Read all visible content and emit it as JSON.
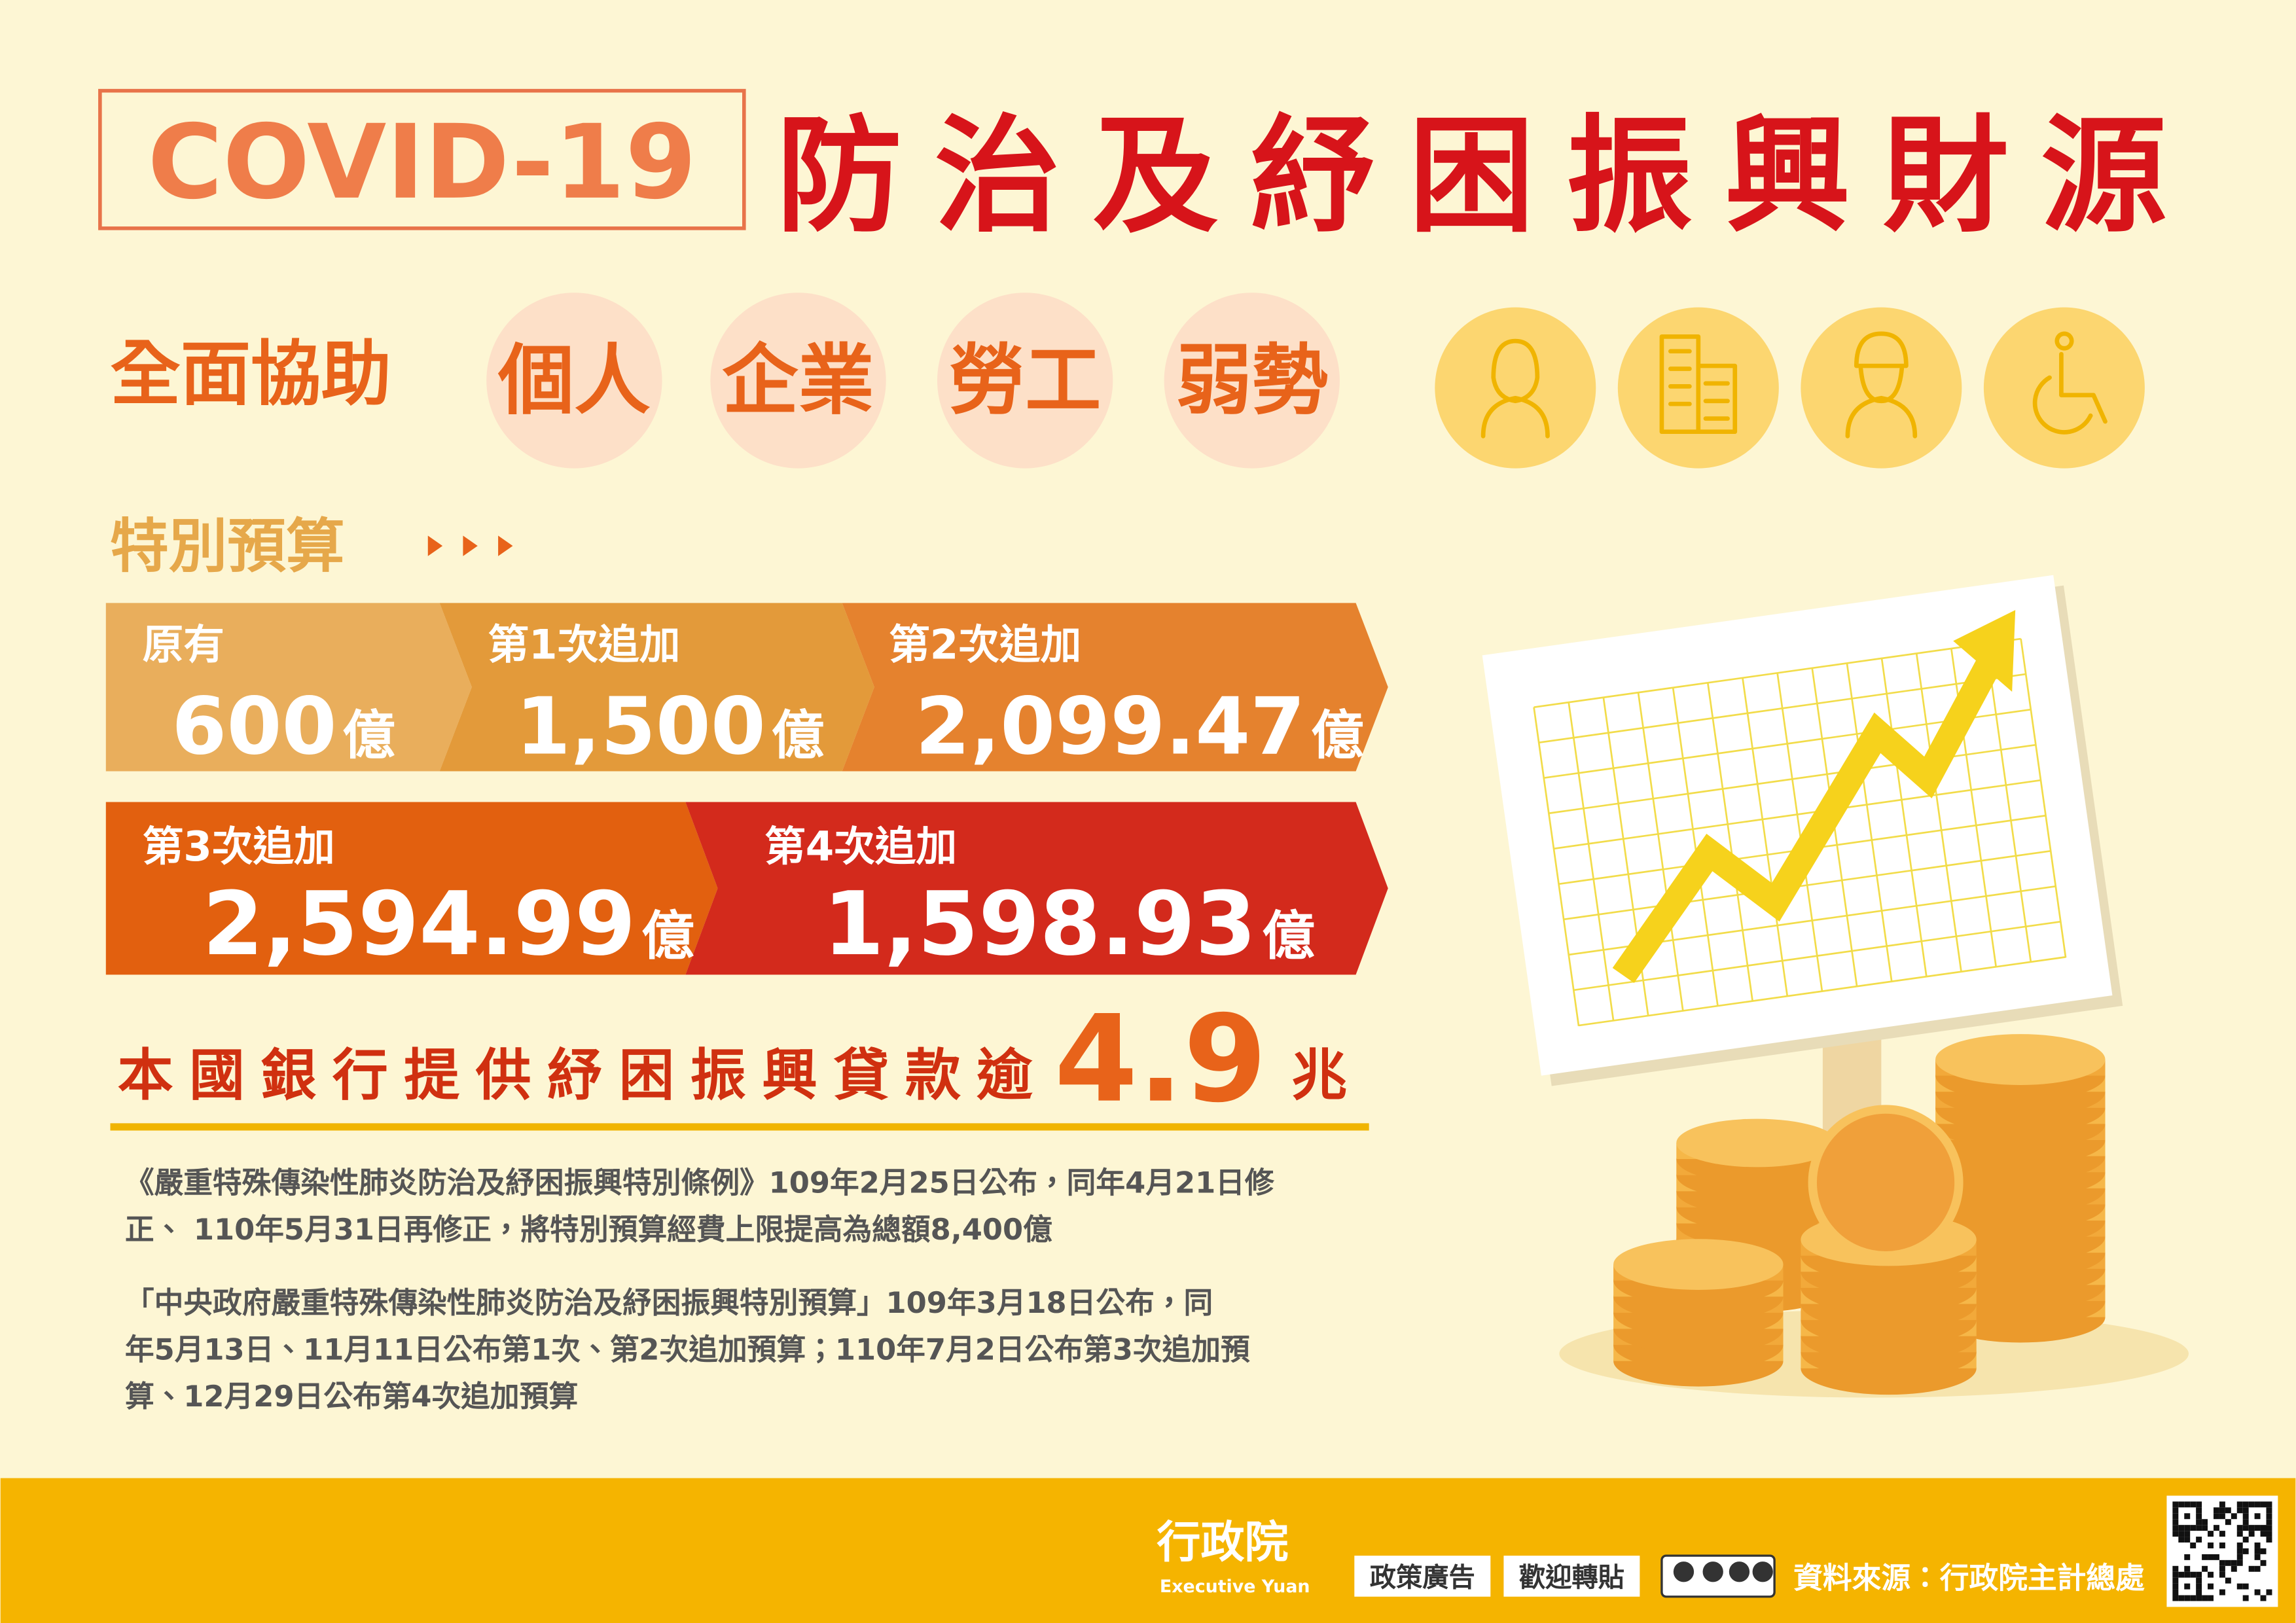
{
  "header": {
    "tag": "COVID-19",
    "title": "防治及紓困振興財源"
  },
  "support": {
    "lead": "全面協助",
    "groups": [
      "個人",
      "企業",
      "勞工",
      "弱勢"
    ]
  },
  "budget": {
    "heading": "特別預算",
    "rows": [
      [
        {
          "label": "原有",
          "amount": "600",
          "unit": "億"
        },
        {
          "label": "第1次追加",
          "amount": "1,500",
          "unit": "億"
        },
        {
          "label": "第2次追加",
          "amount": "2,099.47",
          "unit": "億"
        }
      ],
      [
        {
          "label": "第3次追加",
          "amount": "2,594.99",
          "unit": "億"
        },
        {
          "label": "第4次追加",
          "amount": "1,598.93",
          "unit": "億"
        }
      ]
    ]
  },
  "loan": {
    "text": "本國銀行提供紓困振興貸款逾",
    "amount": "4.9",
    "unit": "兆"
  },
  "notes": [
    [
      "《嚴重特殊傳染性肺炎防治及紓困振興特別條例》109年2月25日公布，同年4月21日修",
      "正、 110年5月31日再修正，將特別預算經費上限提高為總額8,400億"
    ],
    [
      "「中央政府嚴重特殊傳染性肺炎防治及紓困振興特別預算」109年3月18日公布，同",
      "年5月13日、11月11日公布第1次、第2次追加預算；110年7月2日公布第3次追加預",
      "算、12月29日公布第4次追加預算"
    ]
  ],
  "footer": {
    "logo": "行政院",
    "logo_en": "Executive Yuan",
    "tags": [
      "政策廣告",
      "歡迎轉貼"
    ],
    "source": "資料來源：行政院主計總處"
  }
}
